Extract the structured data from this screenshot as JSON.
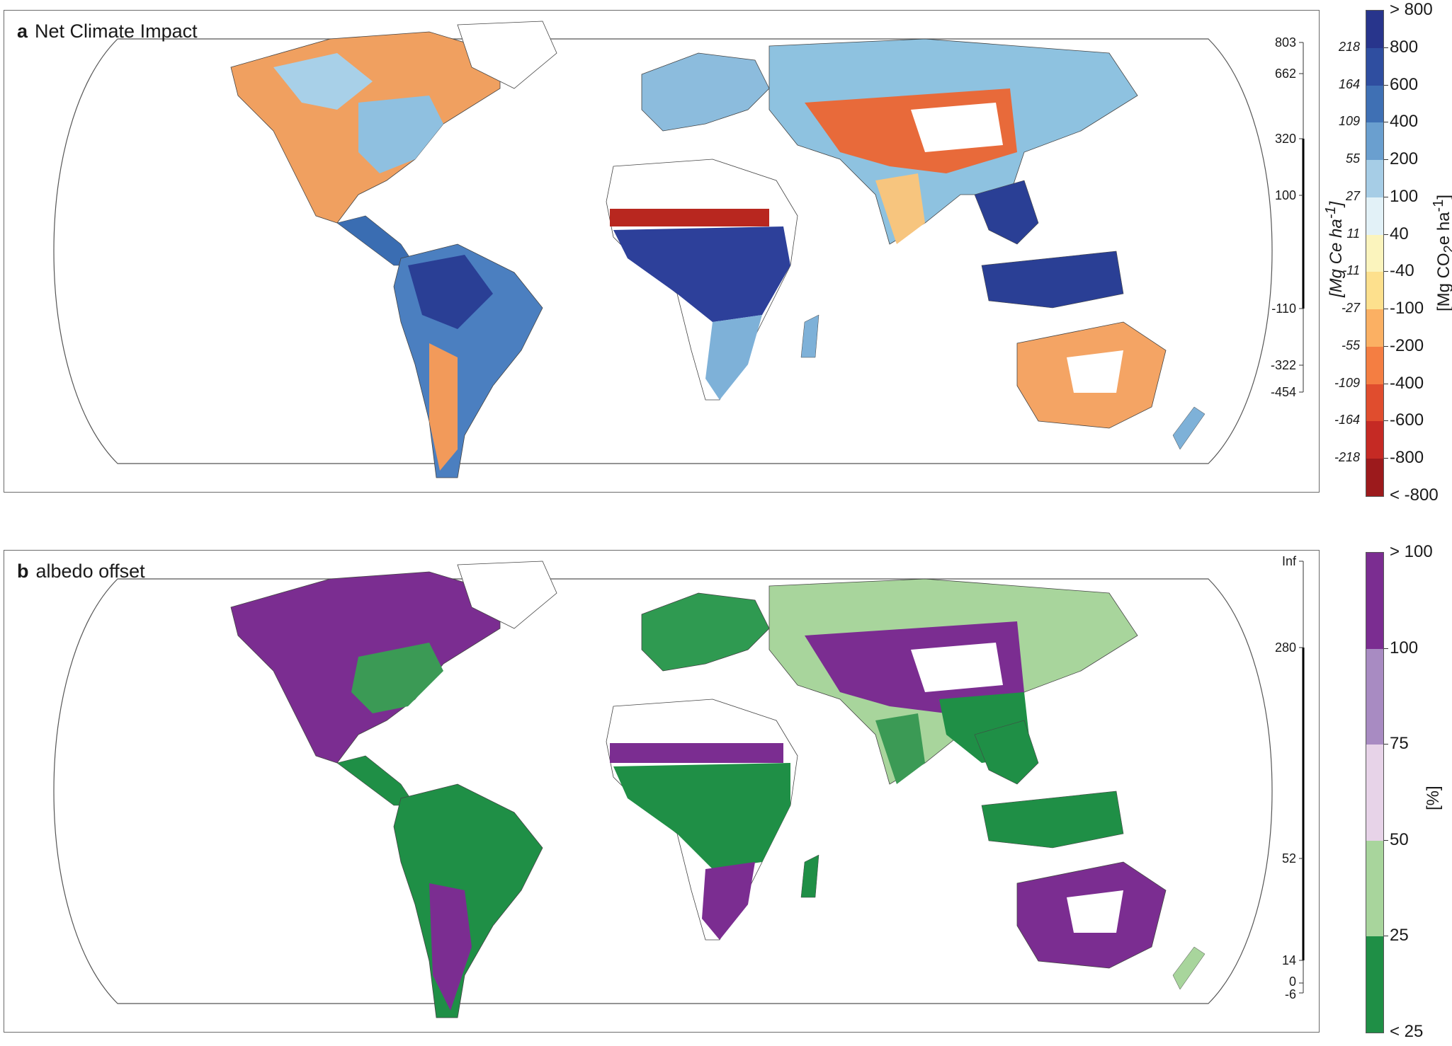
{
  "panel_a": {
    "letter": "a",
    "title": "Net Climate Impact",
    "carbon_scale_ticks": [
      "803",
      "662",
      "320",
      "100",
      "-110",
      "-322",
      "-454"
    ],
    "colorbar": {
      "top_label": "> 800",
      "bottom_label": "< -800",
      "labels_right": [
        "800",
        "600",
        "400",
        "200",
        "100",
        "40",
        "-40",
        "-100",
        "-200",
        "-400",
        "-600",
        "-800"
      ],
      "labels_left": [
        "218",
        "164",
        "109",
        "55",
        "27",
        "11",
        "-11",
        "-27",
        "-55",
        "-109",
        "-164",
        "-218"
      ],
      "colors": [
        "#28358c",
        "#2f4ea0",
        "#3f70b4",
        "#6a9fcf",
        "#a6cde6",
        "#e2f1f7",
        "#fbf4bd",
        "#fde08d",
        "#fbb063",
        "#f47e42",
        "#e04d2e",
        "#c52a24",
        "#9c1a1c"
      ],
      "unit_left": "[Mg Ce ha-1]",
      "unit_right": "[Mg CO2e ha-1]"
    }
  },
  "panel_b": {
    "letter": "b",
    "title": "albedo offset",
    "carbon_scale_ticks": [
      "Inf",
      "280",
      "52",
      "14",
      "0",
      "-6"
    ],
    "colorbar": {
      "top_label": "> 100",
      "bottom_label": "< 25",
      "labels_right": [
        "100",
        "75",
        "50",
        "25"
      ],
      "colors": [
        "#7b2d91",
        "#a88bc2",
        "#e7d3e8",
        "#a8d59c",
        "#1f8f46"
      ],
      "unit": "[%]"
    }
  }
}
